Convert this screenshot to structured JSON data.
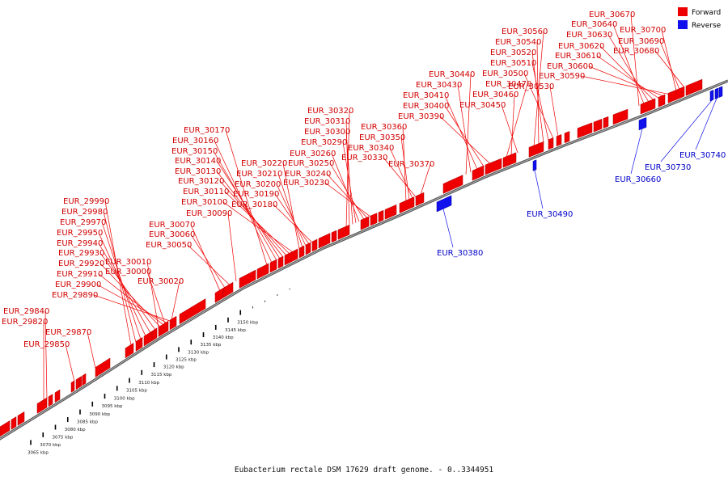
{
  "caption": "Eubacterium rectale DSM 17629 draft genome. - 0..3344951",
  "colors": {
    "forward": "#ee0000",
    "reverse": "#1111ee",
    "axis": "#777777",
    "forward_label": "#d00000",
    "reverse_label": "#0000c8"
  },
  "legend": {
    "forward": "Forward",
    "reverse": "Reverse"
  },
  "kbp_ticks": [
    {
      "kbp": 3065,
      "label": "3065 kbp"
    },
    {
      "kbp": 3070,
      "label": "3070 kbp"
    },
    {
      "kbp": 3075,
      "label": "3075 kbp"
    },
    {
      "kbp": 3080,
      "label": "3080 kbp"
    },
    {
      "kbp": 3085,
      "label": "3085 kbp"
    },
    {
      "kbp": 3090,
      "label": "3090 kbp"
    },
    {
      "kbp": 3095,
      "label": "3095 kbp"
    },
    {
      "kbp": 3100,
      "label": "3100 kbp"
    },
    {
      "kbp": 3105,
      "label": "3105 kbp"
    },
    {
      "kbp": 3110,
      "label": "3110 kbp"
    },
    {
      "kbp": 3115,
      "label": "3115 kbp"
    },
    {
      "kbp": 3120,
      "label": "3120 kbp"
    },
    {
      "kbp": 3125,
      "label": "3125 kbp"
    },
    {
      "kbp": 3130,
      "label": "3130 kbp"
    },
    {
      "kbp": 3135,
      "label": "3135 kbp"
    },
    {
      "kbp": 3140,
      "label": "3140 kbp"
    },
    {
      "kbp": 3145,
      "label": "3145 kbp"
    },
    {
      "kbp": 3150,
      "label": "3150 kbp"
    }
  ],
  "forward_labels": [
    "EUR_29840",
    "EUR_29820",
    "EUR_29870",
    "EUR_29850",
    "EUR_29990",
    "EUR_29980",
    "EUR_29970",
    "EUR_29950",
    "EUR_29940",
    "EUR_29930",
    "EUR_29920",
    "EUR_29910",
    "EUR_29900",
    "EUR_29890",
    "EUR_30010",
    "EUR_30000",
    "EUR_30020",
    "EUR_30070",
    "EUR_30060",
    "EUR_30050",
    "EUR_30090",
    "EUR_30170",
    "EUR_30160",
    "EUR_30150",
    "EUR_30140",
    "EUR_30130",
    "EUR_30120",
    "EUR_30110",
    "EUR_30100",
    "EUR_30220",
    "EUR_30210",
    "EUR_30200",
    "EUR_30190",
    "EUR_30180",
    "EUR_30320",
    "EUR_30310",
    "EUR_30300",
    "EUR_30290",
    "EUR_30260",
    "EUR_30250",
    "EUR_30240",
    "EUR_30230",
    "EUR_30360",
    "EUR_30350",
    "EUR_30340",
    "EUR_30330",
    "EUR_30370",
    "EUR_30440",
    "EUR_30430",
    "EUR_30410",
    "EUR_30400",
    "EUR_30390",
    "EUR_30470",
    "EUR_30460",
    "EUR_30450",
    "EUR_30560",
    "EUR_30540",
    "EUR_30520",
    "EUR_30510",
    "EUR_30500",
    "EUR_30530",
    "EUR_30670",
    "EUR_30640",
    "EUR_30630",
    "EUR_30620",
    "EUR_30610",
    "EUR_30600",
    "EUR_30590",
    "EUR_30700",
    "EUR_30690",
    "EUR_30680"
  ],
  "reverse_labels": [
    "EUR_30380",
    "EUR_30490",
    "EUR_30660",
    "EUR_30730",
    "EUR_30740"
  ]
}
